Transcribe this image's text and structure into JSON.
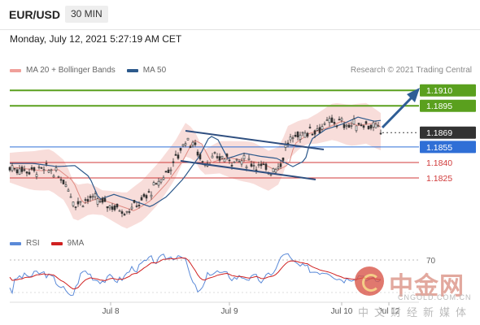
{
  "header": {
    "symbol": "EUR/USD",
    "interval": "30 MIN"
  },
  "datetime": "Monday, July 12, 2021 5:27:19 AM CET",
  "legend_main": [
    {
      "label": "MA 20 + Bollinger Bands",
      "color": "#f0a09a"
    },
    {
      "label": "MA 50",
      "color": "#2d5a8c"
    }
  ],
  "legend_rsi": [
    {
      "label": "RSI",
      "color": "#5b8ad8"
    },
    {
      "label": "9MA",
      "color": "#d02020"
    }
  ],
  "credit": "Research © 2021 Trading Central",
  "watermark": {
    "cn": "中金网",
    "site": "CNGOLD.COM.CN",
    "sub": "中文财经新媒体"
  },
  "chart_data": {
    "type": "candlestick",
    "price_range": [
      1.1773,
      1.1918
    ],
    "levels": [
      {
        "label": "1.1910",
        "value": 1.191,
        "kind": "target"
      },
      {
        "label": "1.1895",
        "value": 1.1895,
        "kind": "target"
      },
      {
        "label": "1.1869",
        "value": 1.1869,
        "kind": "current"
      },
      {
        "label": "1.1855",
        "value": 1.1855,
        "kind": "pivot"
      },
      {
        "label": "1.1840",
        "value": 1.184,
        "kind": "support"
      },
      {
        "label": "1.1825",
        "value": 1.1825,
        "kind": "support"
      }
    ],
    "x_labels": [
      "Jul 8",
      "Jul 9",
      "Jul 10",
      "Jul 12"
    ],
    "rsi": {
      "label": "RSI",
      "level_label": "70",
      "level": 70,
      "range": [
        20,
        80
      ]
    },
    "colors": {
      "target": "#5aa01e",
      "current": "#333333",
      "pivot": "#2f6fd6",
      "support": "#d03a3a",
      "candle": "#333333",
      "arrow": "#2f5e96",
      "channel": "#2f4f80"
    }
  }
}
